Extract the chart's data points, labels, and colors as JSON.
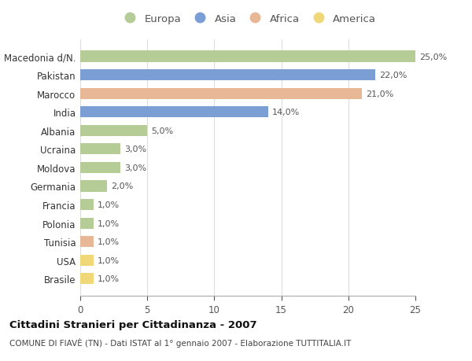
{
  "categories": [
    "Macedonia d/N.",
    "Pakistan",
    "Marocco",
    "India",
    "Albania",
    "Ucraina",
    "Moldova",
    "Germania",
    "Francia",
    "Polonia",
    "Tunisia",
    "USA",
    "Brasile"
  ],
  "values": [
    25.0,
    22.0,
    21.0,
    14.0,
    5.0,
    3.0,
    3.0,
    2.0,
    1.0,
    1.0,
    1.0,
    1.0,
    1.0
  ],
  "continents": [
    "Europa",
    "Asia",
    "Africa",
    "Asia",
    "Europa",
    "Europa",
    "Europa",
    "Europa",
    "Europa",
    "Europa",
    "Africa",
    "America",
    "America"
  ],
  "continent_colors": {
    "Europa": "#b5cc96",
    "Asia": "#7b9fd4",
    "Africa": "#e8b896",
    "America": "#f0d878"
  },
  "legend_order": [
    "Europa",
    "Asia",
    "Africa",
    "America"
  ],
  "labels": [
    "25,0%",
    "22,0%",
    "21,0%",
    "14,0%",
    "5,0%",
    "3,0%",
    "3,0%",
    "2,0%",
    "1,0%",
    "1,0%",
    "1,0%",
    "1,0%",
    "1,0%"
  ],
  "title": "Cittadini Stranieri per Cittadinanza - 2007",
  "subtitle": "COMUNE DI FIAVÈ (TN) - Dati ISTAT al 1° gennaio 2007 - Elaborazione TUTTITALIA.IT",
  "xlim": [
    0,
    25
  ],
  "xticks": [
    0,
    5,
    10,
    15,
    20,
    25
  ],
  "background_color": "#ffffff",
  "grid_color": "#dddddd",
  "bar_height": 0.6
}
